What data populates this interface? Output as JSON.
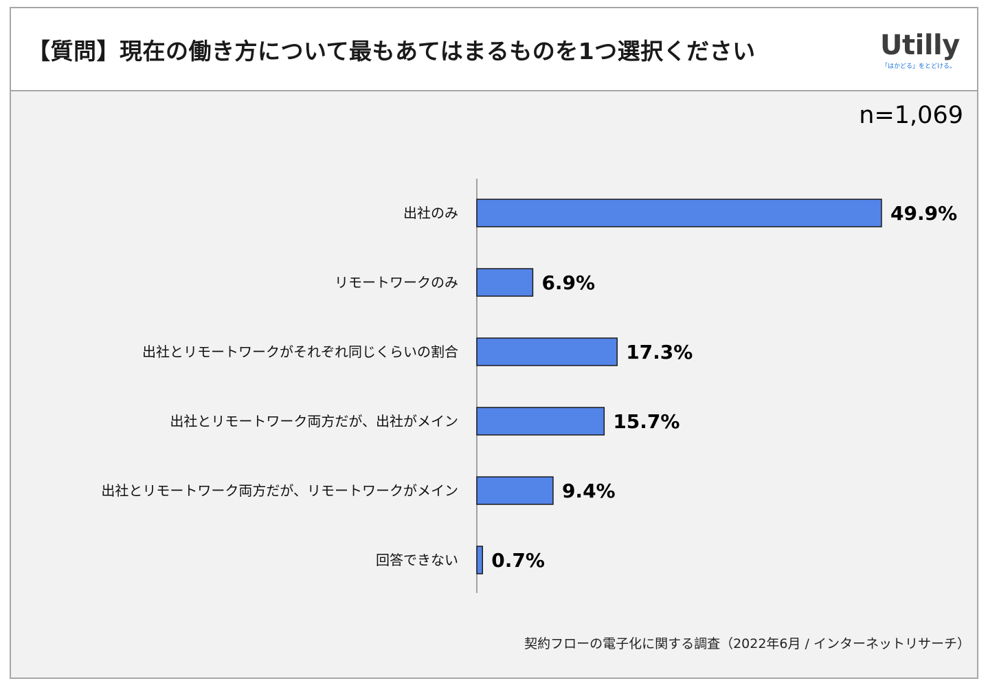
{
  "header": {
    "title": "【質問】現在の働き方について最もあてはまるものを1つ選択ください",
    "logo_text": "Utilly",
    "logo_tagline": "「はかどる」をとどける。"
  },
  "sample_size": "n=1,069",
  "source": "契約フローの電子化に関する調査（2022年6月 / インターネットリサーチ）",
  "colors": {
    "bar": "#5384e8",
    "bar_outline": "#1a1a1a",
    "axis": "#888888",
    "background": "#f2f2f2"
  },
  "chart_data": {
    "type": "bar",
    "orientation": "horizontal",
    "categories": [
      "出社のみ",
      "リモートワークのみ",
      "出社とリモートワークがそれぞれ同じくらいの割合",
      "出社とリモートワーク両方だが、出社がメイン",
      "出社とリモートワーク両方だが、リモートワークがメイン",
      "回答できない"
    ],
    "values": [
      49.9,
      6.9,
      17.3,
      15.7,
      9.4,
      0.7
    ],
    "value_labels": [
      "49.9%",
      "6.9%",
      "17.3%",
      "15.7%",
      "9.4%",
      "0.7%"
    ],
    "unit": "%",
    "title": "",
    "xlabel": "",
    "ylabel": "",
    "xlim": [
      0,
      50
    ],
    "grid": false,
    "legend": "none"
  }
}
